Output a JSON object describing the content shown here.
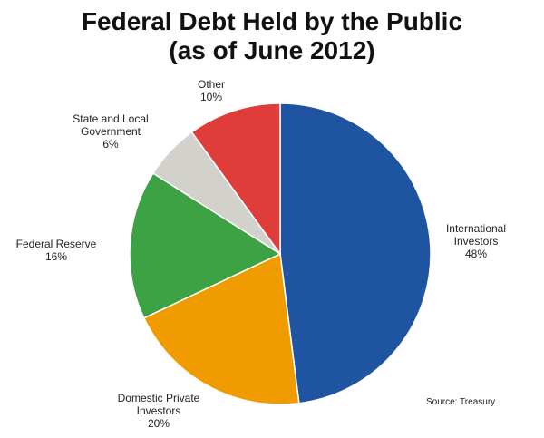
{
  "chart_data": {
    "type": "pie",
    "title": "Federal Debt Held by the Public",
    "subtitle": "(as of June 2012)",
    "categories": [
      "International Investors",
      "Domestic Private Investors",
      "Federal Reserve",
      "State and Local Government",
      "Other"
    ],
    "values": [
      48,
      20,
      16,
      6,
      10
    ],
    "value_labels": [
      "48%",
      "20%",
      "16%",
      "6%",
      "10%"
    ],
    "colors": [
      "#1f55a0",
      "#f09c00",
      "#3da243",
      "#d3d1cc",
      "#df3d39"
    ],
    "annotation": "Source: Treasury"
  }
}
